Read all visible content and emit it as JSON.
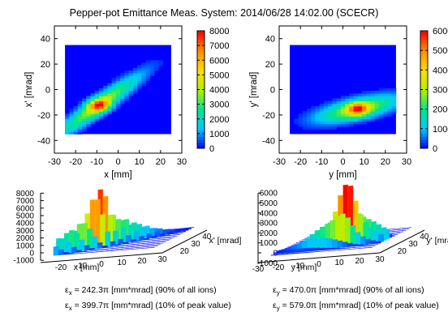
{
  "title": "Pepper-pot Emittance Meas. System: 2014/06/28 14:02.00 (SCECR)",
  "emittance_lines": [
    {
      "sym": "ε",
      "sub": "x",
      "text": " = 242.3π [mm*mrad] (90% of all ions)"
    },
    {
      "sym": "ε",
      "sub": "x",
      "text": " = 399.7π [mm*mrad] (10% of peak value)"
    },
    {
      "sym": "ε",
      "sub": "y",
      "text": " = 470.0π [mm*mrad] (90% of all ions)"
    },
    {
      "sym": "ε",
      "sub": "y",
      "text": " = 579.0π [mm*mrad] (10% of peak value)"
    }
  ],
  "chart_data": [
    {
      "type": "heatmap",
      "xlabel": "x [mm]",
      "ylabel": "x' [mrad]",
      "xlim": [
        -30,
        30
      ],
      "ylim": [
        -50,
        50
      ],
      "xticks": [
        -30,
        -20,
        -10,
        0,
        10,
        20,
        30
      ],
      "yticks": [
        -40,
        -20,
        0,
        20,
        40
      ],
      "zlim": [
        0,
        8000
      ],
      "colorbar_ticks": [
        0,
        1000,
        2000,
        3000,
        4000,
        5000,
        6000,
        7000,
        8000
      ],
      "region": {
        "x": [
          -25,
          25
        ],
        "y": [
          -35,
          35
        ]
      },
      "peak": {
        "x": -9,
        "y": -12,
        "value": 8000
      },
      "ridge_slope": 1.15,
      "colormap": [
        "#0000ff",
        "#00c8ff",
        "#00e68c",
        "#b4f000",
        "#ffdc00",
        "#ff8c00",
        "#ff0000"
      ]
    },
    {
      "type": "heatmap",
      "xlabel": "y [mm]",
      "ylabel": "y' [mrad]",
      "xlim": [
        -30,
        30
      ],
      "ylim": [
        -50,
        50
      ],
      "xticks": [
        -30,
        -20,
        -10,
        0,
        10,
        20,
        30
      ],
      "yticks": [
        -40,
        -20,
        0,
        20,
        40
      ],
      "zlim": [
        0,
        6000
      ],
      "colorbar_ticks": [
        0,
        1000,
        2000,
        3000,
        4000,
        5000,
        6000
      ],
      "region": {
        "x": [
          -25,
          25
        ],
        "y": [
          -35,
          35
        ]
      },
      "peak": {
        "x": 7,
        "y": -15,
        "value": 6000
      },
      "ridge_slope": 0.35,
      "colormap": [
        "#0000ff",
        "#00c8ff",
        "#00e68c",
        "#b4f000",
        "#ffdc00",
        "#ff8c00",
        "#ff0000"
      ]
    },
    {
      "type": "surface",
      "xlabel": "x [mm]",
      "ylabel": "x' [mrad]",
      "zticks": [
        -1000,
        0,
        1000,
        2000,
        3000,
        4000,
        5000,
        6000,
        7000,
        8000
      ],
      "xticks": [
        -20,
        -10,
        0,
        10,
        20,
        30
      ],
      "yticks": [
        20,
        30,
        40
      ]
    },
    {
      "type": "surface",
      "xlabel": "y [mm]",
      "ylabel": "y' [mrad]",
      "zticks": [
        -1000,
        0,
        1000,
        2000,
        3000,
        4000,
        5000,
        6000
      ],
      "xticks": [
        -30,
        -20,
        -10,
        0,
        10,
        20,
        30
      ],
      "yticks": [
        20,
        30,
        40
      ]
    }
  ]
}
